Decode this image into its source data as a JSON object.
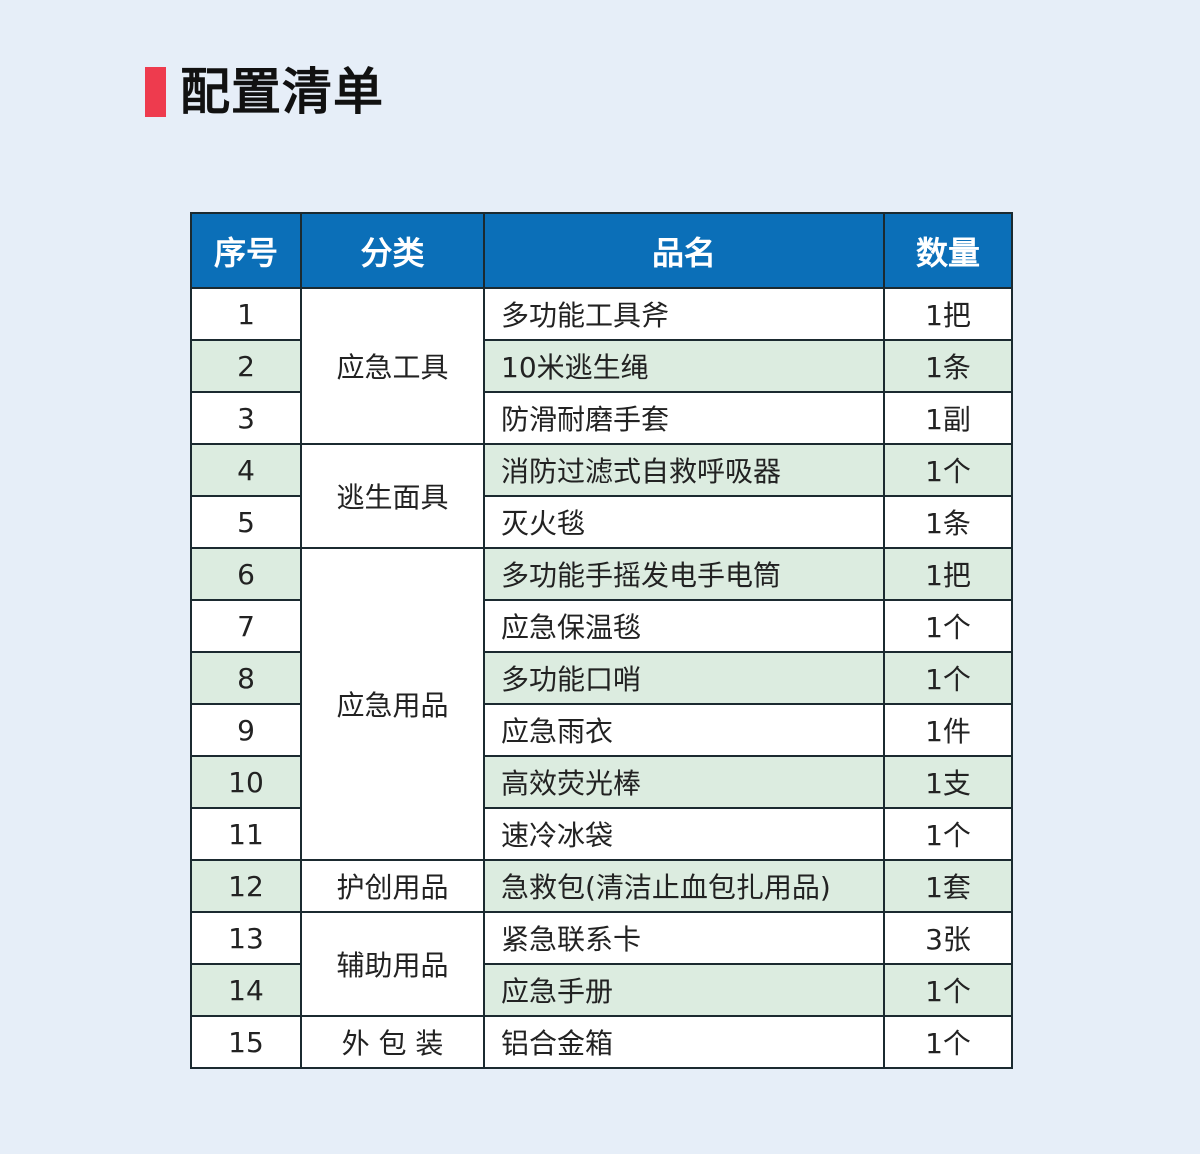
{
  "title": "配置清单",
  "colors": {
    "accent": "#ee3b4e",
    "header": "#0b6fb8",
    "alt_row": "#dcece0"
  },
  "table": {
    "headers": [
      "序号",
      "分类",
      "品名",
      "数量"
    ],
    "groups": [
      {
        "category": "应急工具",
        "rows": [
          [
            "1",
            "多功能工具斧",
            "1把"
          ],
          [
            "2",
            "10米逃生绳",
            "1条"
          ],
          [
            "3",
            "防滑耐磨手套",
            "1副"
          ]
        ]
      },
      {
        "category": "逃生面具",
        "rows": [
          [
            "4",
            "消防过滤式自救呼吸器",
            "1个"
          ],
          [
            "5",
            "灭火毯",
            "1条"
          ]
        ]
      },
      {
        "category": "应急用品",
        "rows": [
          [
            "6",
            "多功能手摇发电手电筒",
            "1把"
          ],
          [
            "7",
            "应急保温毯",
            "1个"
          ],
          [
            "8",
            "多功能口哨",
            "1个"
          ],
          [
            "9",
            "应急雨衣",
            "1件"
          ],
          [
            "10",
            "高效荧光棒",
            "1支"
          ],
          [
            "11",
            "速冷冰袋",
            "1个"
          ]
        ]
      },
      {
        "category": "护创用品",
        "rows": [
          [
            "12",
            "急救包(清洁止血包扎用品)",
            "1套"
          ]
        ]
      },
      {
        "category": "辅助用品",
        "rows": [
          [
            "13",
            "紧急联系卡",
            "3张"
          ],
          [
            "14",
            "应急手册",
            "1个"
          ]
        ]
      },
      {
        "category": "外 包 装",
        "rows": [
          [
            "15",
            "铝合金箱",
            "1个"
          ]
        ]
      }
    ]
  }
}
